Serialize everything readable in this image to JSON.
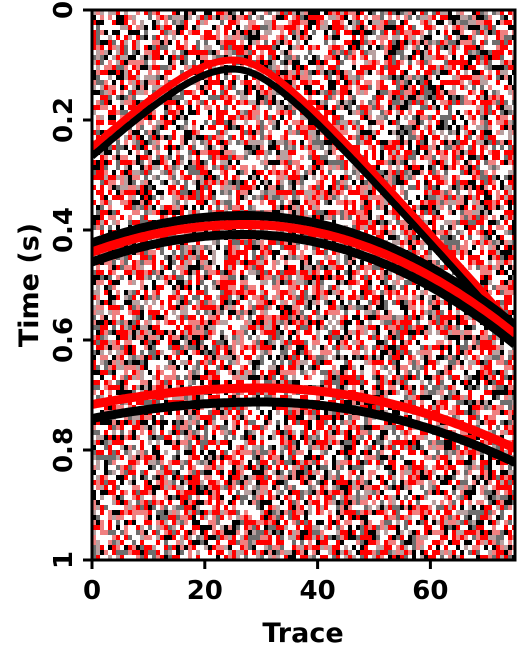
{
  "chart_data": {
    "type": "heatmap",
    "title": "",
    "xlabel": "Trace",
    "ylabel": "Time (s)",
    "xlim": [
      0,
      75
    ],
    "ylim": [
      0,
      1
    ],
    "y_axis_inverted": true,
    "x_ticks": [
      "0",
      "20",
      "40",
      "60"
    ],
    "y_ticks": [
      "0",
      "0.2",
      "0.4",
      "0.6",
      "0.8",
      "1"
    ],
    "colormap": {
      "positive": "#000000",
      "zero": "#ffffff",
      "negative": "#ff0000"
    },
    "background": "random noise",
    "events": [
      {
        "shape": "hyperbola",
        "apex_trace": 25,
        "apex_time": 0.1,
        "start_time": 0.34,
        "end_time": 0.68,
        "polarity": "black-leading"
      },
      {
        "shape": "curve",
        "apex_trace": 27,
        "apex_time": 0.39,
        "start_time": 0.44,
        "end_time": 0.59,
        "polarity": "mixed"
      },
      {
        "shape": "curve",
        "apex_trace": 30,
        "apex_time": 0.7,
        "start_time": 0.73,
        "end_time": 0.81,
        "polarity": "red-leading"
      }
    ]
  }
}
